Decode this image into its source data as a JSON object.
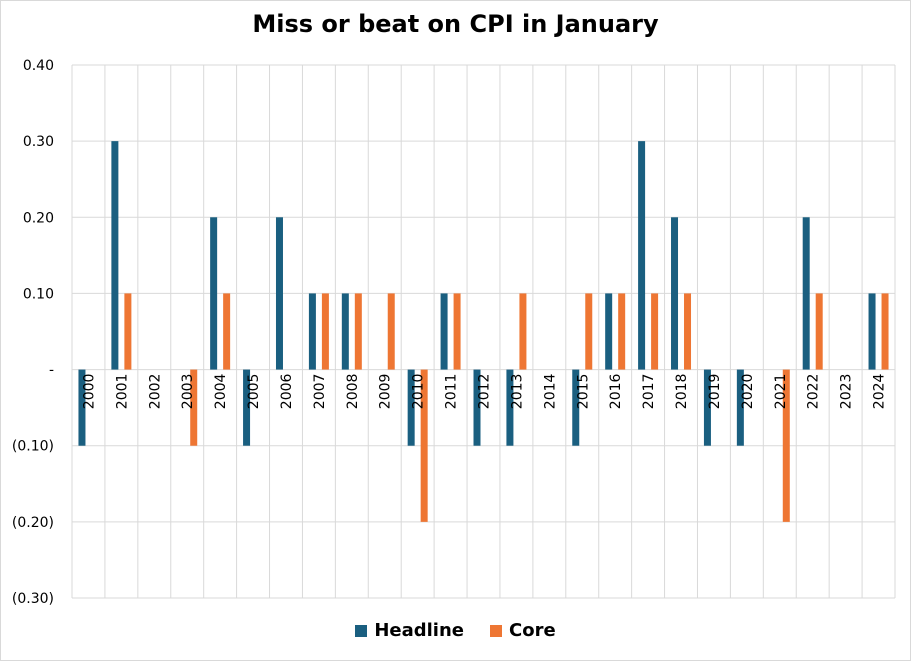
{
  "chart_data": {
    "type": "bar",
    "title": "Miss or beat on CPI in January",
    "xlabel": "",
    "ylabel": "",
    "categories": [
      "2000",
      "2001",
      "2002",
      "2003",
      "2004",
      "2005",
      "2006",
      "2007",
      "2008",
      "2009",
      "2010",
      "2011",
      "2012",
      "2013",
      "2014",
      "2015",
      "2016",
      "2017",
      "2018",
      "2019",
      "2020",
      "2021",
      "2022",
      "2023",
      "2024"
    ],
    "series": [
      {
        "name": "Headline",
        "color": "#1a5f80",
        "values": [
          -0.1,
          0.3,
          0,
          0,
          0.2,
          -0.1,
          0.2,
          0.1,
          0.1,
          0,
          -0.1,
          0.1,
          -0.1,
          -0.1,
          0,
          -0.1,
          0.1,
          0.3,
          0.2,
          -0.1,
          -0.1,
          0,
          0.2,
          0,
          0.1
        ]
      },
      {
        "name": "Core",
        "color": "#ee7633",
        "values": [
          0,
          0.1,
          0,
          -0.1,
          0.1,
          0,
          0,
          0.1,
          0.1,
          0.1,
          -0.2,
          0.1,
          0,
          0.1,
          0,
          0.1,
          0.1,
          0.1,
          0.1,
          0,
          0,
          -0.2,
          0.1,
          0,
          0.1
        ]
      }
    ],
    "ylim": [
      -0.3,
      0.4
    ],
    "yticks": [
      0.4,
      0.3,
      0.2,
      0.1,
      0,
      -0.1,
      -0.2,
      -0.3
    ],
    "ytick_labels": [
      "0.40",
      "0.30",
      "0.20",
      "0.10",
      "-",
      "(0.10)",
      "(0.20)",
      "(0.30)"
    ],
    "grid": true,
    "legend_position": "bottom"
  }
}
